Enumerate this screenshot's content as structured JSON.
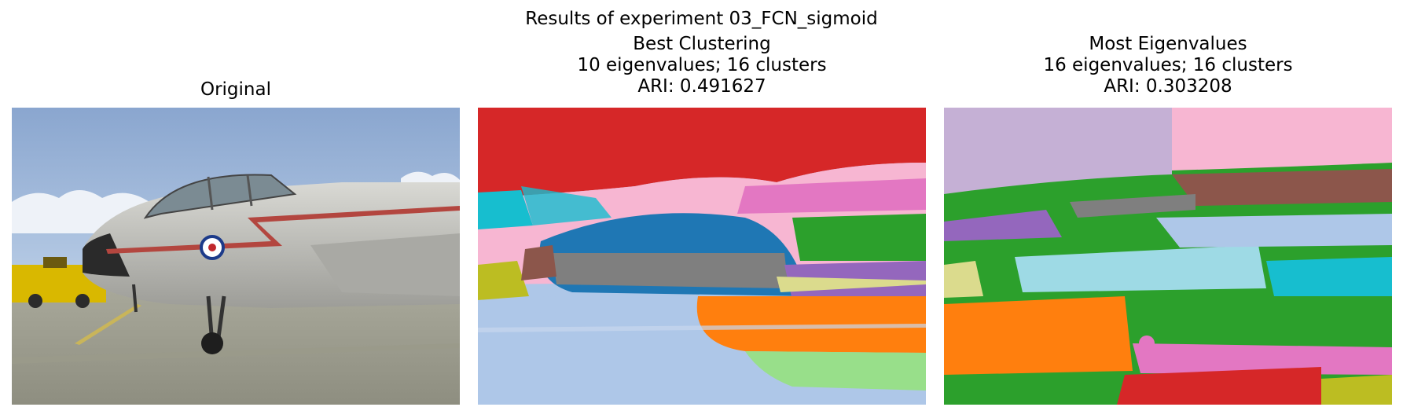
{
  "suptitle": "Results of experiment 03_FCN_sigmoid",
  "panels": [
    {
      "title_lines": [
        "Original"
      ]
    },
    {
      "title_lines": [
        "Best Clustering",
        "10 eigenvalues; 16 clusters",
        "ARI: 0.491627"
      ]
    },
    {
      "title_lines": [
        "Most Eigenvalues",
        "16 eigenvalues; 16 clusters",
        "ARI: 0.303208"
      ]
    }
  ],
  "colors": {
    "tab_red": "#d62728",
    "tab_pink": "#f7b6d2",
    "tab_lightblue": "#aec7e8",
    "tab_blue": "#1f77b4",
    "tab_gray": "#7f7f7f",
    "tab_orange": "#ff7f0e",
    "tab_lightgreen": "#98df8a",
    "tab_green": "#2ca02c",
    "tab_cyan": "#17becf",
    "tab_purple": "#9467bd",
    "tab_lavender": "#c5b0d5",
    "tab_brown": "#8c564b",
    "tab_olive": "#bcbd22",
    "tab_khaki": "#dbdb8d",
    "tab_paleblue": "#9edae5",
    "tab_magenta": "#e377c2"
  }
}
